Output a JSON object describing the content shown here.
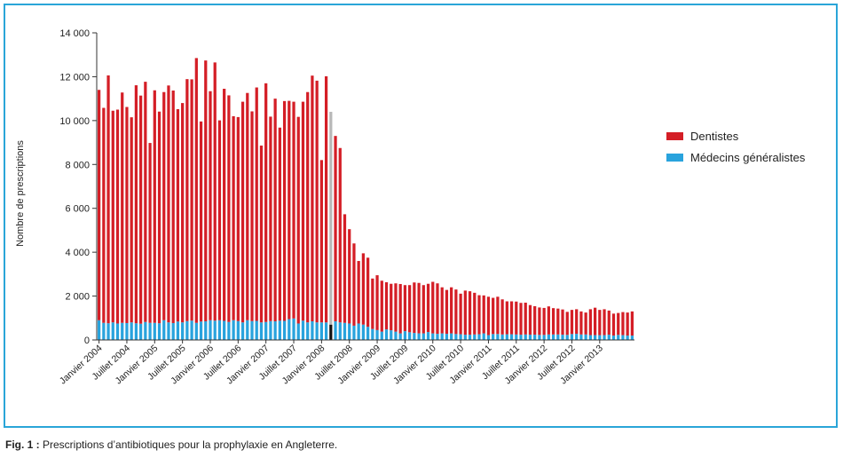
{
  "caption": {
    "label": "Fig. 1 :",
    "text": " Prescriptions d’antibiotiques pour la prophylaxie en Angleterre."
  },
  "chart_data": {
    "type": "bar",
    "stacked": true,
    "ylabel": "Nombre de prescriptions",
    "ylim": [
      0,
      14000
    ],
    "yticks": [
      0,
      2000,
      4000,
      6000,
      8000,
      10000,
      12000,
      14000
    ],
    "ytick_labels": [
      "0",
      "2 000",
      "4 000",
      "6 000",
      "8 000",
      "10 000",
      "12 000",
      "14 000"
    ],
    "x_tick_labels": [
      "Janvier 2004",
      "Juillet 2004",
      "Janvier 2005",
      "Juillet 2005",
      "Janvier 2006",
      "Juillet 2006",
      "Janvier 2007",
      "Juillet 2007",
      "Janvier 2008",
      "Juillet 2008",
      "Janvier 2009",
      "Juillet 2009",
      "Janvier 2010",
      "Juillet 2010",
      "Janvier 2011",
      "Juillet 2011",
      "Janvier 2012",
      "Juillet 2012",
      "Janvier 2013"
    ],
    "x_tick_every": 6,
    "legend_position": "right",
    "grid": false,
    "highlight_index": 50,
    "highlight_colors": {
      "top": "#b8b8b8",
      "bottom": "#111111"
    },
    "series": [
      {
        "name": "Médecins généralistes",
        "color": "#29a3dd",
        "values": [
          900,
          780,
          760,
          800,
          750,
          780,
          770,
          800,
          760,
          740,
          820,
          780,
          780,
          760,
          900,
          800,
          770,
          840,
          800,
          860,
          880,
          780,
          840,
          850,
          900,
          880,
          900,
          870,
          820,
          900,
          860,
          800,
          900,
          860,
          870,
          800,
          820,
          860,
          850,
          880,
          870,
          950,
          980,
          750,
          880,
          800,
          850,
          800,
          800,
          800,
          700,
          850,
          800,
          780,
          750,
          650,
          750,
          700,
          600,
          500,
          450,
          380,
          480,
          440,
          380,
          300,
          400,
          350,
          320,
          300,
          300,
          360,
          300,
          280,
          300,
          280,
          300,
          270,
          260,
          240,
          240,
          250,
          260,
          300,
          220,
          270,
          270,
          250,
          260,
          260,
          250,
          240,
          250,
          240,
          240,
          230,
          230,
          250,
          250,
          250,
          240,
          230,
          270,
          280,
          250,
          250,
          220,
          220,
          220,
          220,
          240,
          200,
          230,
          220,
          200,
          200
        ]
      },
      {
        "name": "Dentistes",
        "color": "#d41e26",
        "values": [
          10500,
          9800,
          11300,
          9650,
          9750,
          10500,
          9850,
          9350,
          10850,
          10400,
          10950,
          8200,
          10600,
          9650,
          10400,
          10800,
          10600,
          9680,
          10000,
          11030,
          11000,
          12070,
          9120,
          11890,
          10440,
          11770,
          9110,
          10580,
          10330,
          9300,
          9300,
          10060,
          10360,
          9560,
          10640,
          8060,
          10880,
          9320,
          10150,
          8800,
          10020,
          9950,
          9880,
          9420,
          9980,
          10500,
          11200,
          11020,
          7400,
          11220,
          9700,
          8450,
          7950,
          4950,
          4300,
          3750,
          2850,
          3250,
          3150,
          2300,
          2500,
          2320,
          2150,
          2120,
          2200,
          2250,
          2100,
          2150,
          2300,
          2300,
          2200,
          2200,
          2350,
          2300,
          2100,
          2000,
          2100,
          2030,
          1850,
          2010,
          1980,
          1900,
          1780,
          1730,
          1750,
          1650,
          1700,
          1600,
          1500,
          1500,
          1500,
          1450,
          1450,
          1350,
          1300,
          1250,
          1230,
          1280,
          1200,
          1180,
          1150,
          1050,
          1100,
          1120,
          1050,
          1000,
          1180,
          1250,
          1150,
          1180,
          1100,
          1000,
          1000,
          1050,
          1050,
          1100
        ]
      }
    ]
  }
}
